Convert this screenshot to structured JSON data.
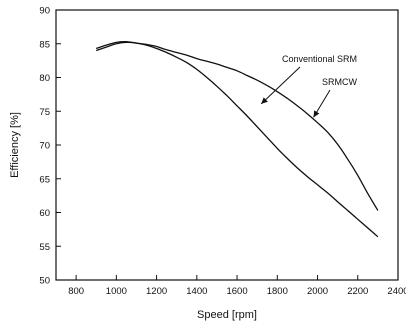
{
  "chart_data": {
    "type": "line",
    "title": "",
    "xlabel": "Speed [rpm]",
    "ylabel": "Efficiency [%]",
    "xlim": [
      700,
      2400
    ],
    "ylim": [
      50,
      90
    ],
    "xticks": [
      800,
      1000,
      1200,
      1400,
      1600,
      1800,
      2000,
      2200,
      2400
    ],
    "yticks": [
      50,
      55,
      60,
      65,
      70,
      75,
      80,
      85,
      90
    ],
    "grid": false,
    "series": [
      {
        "name": "Conventional SRM",
        "x": [
          900,
          950,
          1000,
          1050,
          1100,
          1150,
          1200,
          1250,
          1300,
          1350,
          1400,
          1450,
          1500,
          1550,
          1600,
          1650,
          1700,
          1750,
          1800,
          1850,
          1900,
          1950,
          2000,
          2050,
          2100,
          2150,
          2200,
          2250,
          2300
        ],
        "y": [
          84.3,
          84.8,
          85.2,
          85.3,
          85.1,
          84.8,
          84.3,
          83.7,
          83.0,
          82.2,
          81.2,
          80.0,
          78.7,
          77.3,
          75.8,
          74.3,
          72.7,
          71.1,
          69.5,
          68.0,
          66.6,
          65.3,
          64.1,
          62.9,
          61.6,
          60.3,
          59.0,
          57.7,
          56.4
        ]
      },
      {
        "name": "SRMCW",
        "x": [
          900,
          950,
          1000,
          1050,
          1100,
          1150,
          1200,
          1250,
          1300,
          1350,
          1400,
          1450,
          1500,
          1550,
          1600,
          1650,
          1700,
          1750,
          1800,
          1850,
          1900,
          1950,
          2000,
          2050,
          2100,
          2150,
          2200,
          2250,
          2300
        ],
        "y": [
          84.0,
          84.5,
          85.0,
          85.2,
          85.1,
          84.9,
          84.6,
          84.1,
          83.7,
          83.3,
          82.8,
          82.4,
          82.0,
          81.5,
          81.0,
          80.3,
          79.6,
          78.8,
          77.9,
          76.9,
          75.8,
          74.6,
          73.3,
          71.9,
          70.1,
          67.9,
          65.5,
          62.8,
          60.3
        ]
      }
    ],
    "annotations": [
      {
        "text": "Conventional SRM",
        "target_series": "Conventional SRM",
        "target_x": 1720,
        "target_y": 75.5
      },
      {
        "text": "SRMCW",
        "target_series": "SRMCW",
        "target_x": 1980,
        "target_y": 73.5
      }
    ],
    "colors": {
      "line": "#111111",
      "axis": "#111111",
      "background": "#ffffff"
    }
  }
}
